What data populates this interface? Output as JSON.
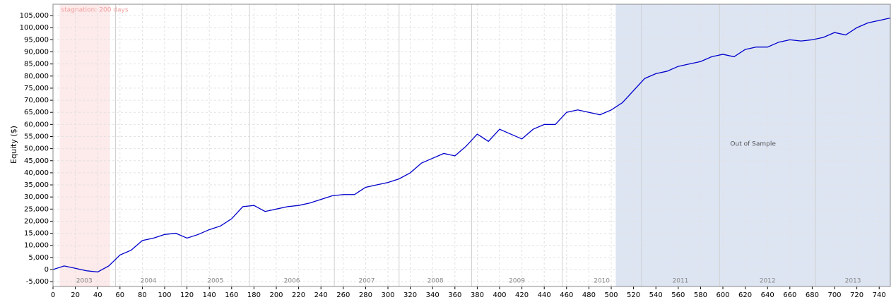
{
  "chart_data": {
    "type": "line",
    "y_label": "Equity ($)",
    "x": [
      0,
      10,
      20,
      30,
      40,
      50,
      60,
      70,
      80,
      90,
      100,
      110,
      120,
      130,
      140,
      150,
      160,
      170,
      180,
      190,
      200,
      210,
      220,
      230,
      240,
      250,
      260,
      270,
      280,
      290,
      300,
      310,
      320,
      330,
      340,
      350,
      360,
      370,
      380,
      390,
      400,
      410,
      420,
      430,
      440,
      450,
      460,
      470,
      480,
      490,
      500,
      510,
      520,
      530,
      540,
      550,
      560,
      570,
      580,
      590,
      600,
      610,
      620,
      630,
      640,
      650,
      660,
      670,
      680,
      690,
      700,
      710,
      720,
      730,
      740,
      750
    ],
    "series": [
      {
        "name": "Equity",
        "color": "#0000cc",
        "values": [
          0,
          1500,
          500,
          -500,
          -1000,
          1500,
          6000,
          8000,
          12000,
          13000,
          14500,
          15000,
          13000,
          14500,
          16500,
          18000,
          21000,
          26000,
          26500,
          24000,
          25000,
          26000,
          26500,
          27500,
          29000,
          30500,
          31000,
          31000,
          34000,
          35000,
          36000,
          37500,
          40000,
          44000,
          46000,
          48000,
          47000,
          51000,
          56000,
          53000,
          58000,
          56000,
          54000,
          58000,
          60000,
          60000,
          65000,
          66000,
          65000,
          64000,
          66000,
          69000,
          74000,
          79000,
          81000,
          82000,
          84000,
          85000,
          86000,
          88000,
          89000,
          88000,
          91000,
          92000,
          92000,
          94000,
          95000,
          94500,
          95000,
          96000,
          98000,
          97000,
          100000,
          102000,
          103000,
          104000
        ]
      }
    ],
    "xlim": [
      0,
      750
    ],
    "ylim": [
      -7000,
      109700
    ],
    "xticks": [
      0,
      20,
      40,
      60,
      80,
      100,
      120,
      140,
      160,
      180,
      200,
      220,
      240,
      260,
      280,
      300,
      320,
      340,
      360,
      380,
      400,
      420,
      440,
      460,
      480,
      500,
      520,
      540,
      560,
      580,
      600,
      620,
      640,
      660,
      680,
      700,
      720,
      740
    ],
    "yticks": [
      {
        "value": -5000,
        "label": "-5,000"
      },
      0,
      {
        "value": 5000,
        "label": "5,000"
      },
      {
        "value": 10000,
        "label": "10,000"
      },
      {
        "value": 15000,
        "label": "15,000"
      },
      {
        "value": 20000,
        "label": "20,000"
      },
      {
        "value": 25000,
        "label": "25,000"
      },
      {
        "value": 30000,
        "label": "30,000"
      },
      {
        "value": 35000,
        "label": "35,000"
      },
      {
        "value": 40000,
        "label": "40,000"
      },
      {
        "value": 45000,
        "label": "45,000"
      },
      {
        "value": 50000,
        "label": "50,000"
      },
      {
        "value": 55000,
        "label": "55,000"
      },
      {
        "value": 60000,
        "label": "60,000"
      },
      {
        "value": 65000,
        "label": "65,000"
      },
      {
        "value": 70000,
        "label": "70,000"
      },
      {
        "value": 75000,
        "label": "75,000"
      },
      {
        "value": 80000,
        "label": "80,000"
      },
      {
        "value": 85000,
        "label": "85,000"
      },
      {
        "value": 90000,
        "label": "90,000"
      },
      {
        "value": 95000,
        "label": "95,000"
      },
      {
        "value": 100000,
        "label": "100,000"
      },
      {
        "value": 105000,
        "label": "105,000"
      }
    ],
    "grid": true,
    "stagnation": {
      "label": "stagnation: 200 days",
      "range": [
        6,
        51
      ],
      "color": "#fdeaea"
    },
    "out_of_sample": {
      "label": "Out of Sample",
      "range": [
        504,
        750
      ],
      "color": "#dde5f3"
    },
    "year_boundaries": [
      56,
      115,
      176,
      252,
      310,
      375,
      456,
      527,
      597,
      683
    ],
    "years": [
      "2003",
      "2004",
      "2005",
      "2006",
      "2007",
      "2008",
      "2009",
      "2010",
      "2011",
      "2012",
      "2013"
    ]
  }
}
